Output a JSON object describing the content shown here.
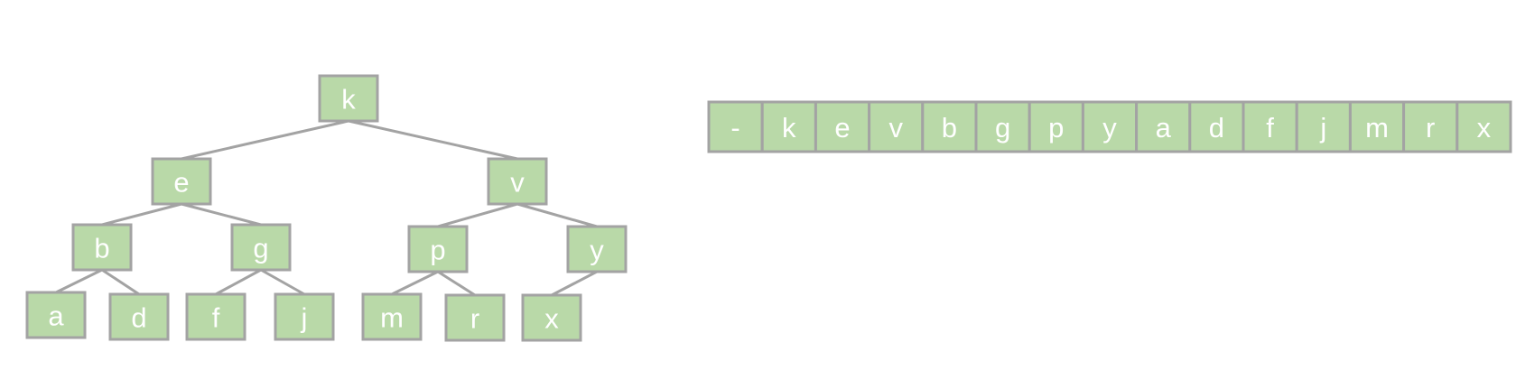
{
  "tree": {
    "nodes": [
      {
        "id": "k",
        "label": "k"
      },
      {
        "id": "e",
        "label": "e"
      },
      {
        "id": "v",
        "label": "v"
      },
      {
        "id": "b",
        "label": "b"
      },
      {
        "id": "g",
        "label": "g"
      },
      {
        "id": "p",
        "label": "p"
      },
      {
        "id": "y",
        "label": "y"
      },
      {
        "id": "a",
        "label": "a"
      },
      {
        "id": "d",
        "label": "d"
      },
      {
        "id": "f",
        "label": "f"
      },
      {
        "id": "j",
        "label": "j"
      },
      {
        "id": "m",
        "label": "m"
      },
      {
        "id": "r",
        "label": "r"
      },
      {
        "id": "x",
        "label": "x"
      }
    ],
    "edges": [
      [
        "k",
        "e"
      ],
      [
        "k",
        "v"
      ],
      [
        "e",
        "b"
      ],
      [
        "e",
        "g"
      ],
      [
        "v",
        "p"
      ],
      [
        "v",
        "y"
      ],
      [
        "b",
        "a"
      ],
      [
        "b",
        "d"
      ],
      [
        "g",
        "f"
      ],
      [
        "g",
        "j"
      ],
      [
        "p",
        "m"
      ],
      [
        "p",
        "r"
      ],
      [
        "y",
        "x"
      ]
    ]
  },
  "array": {
    "cells": [
      "-",
      "k",
      "e",
      "v",
      "b",
      "g",
      "p",
      "y",
      "a",
      "d",
      "f",
      "j",
      "m",
      "r",
      "x"
    ]
  },
  "colors": {
    "node_fill": "#b9d9a8",
    "border": "#a3a3a3",
    "text": "#ffffff"
  }
}
